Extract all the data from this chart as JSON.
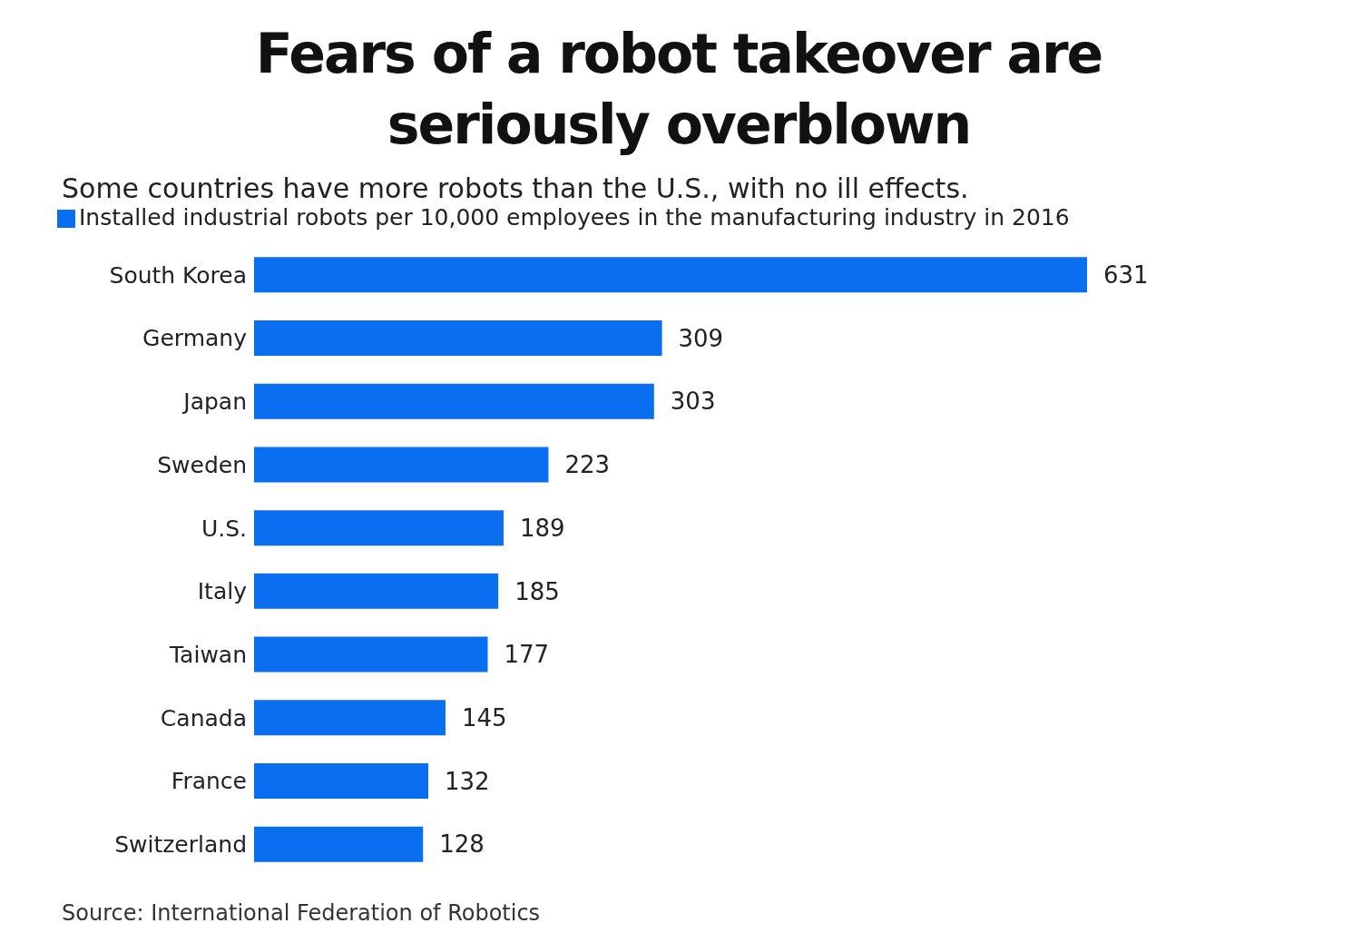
{
  "chart_data": {
    "type": "bar",
    "orientation": "horizontal",
    "title": "Fears of a robot takeover are seriously overblown",
    "subtitle": "Some countries have more robots than the U.S., with no ill effects.",
    "categories": [
      "South Korea",
      "Germany",
      "Japan",
      "Sweden",
      "U.S.",
      "Italy",
      "Taiwan",
      "Canada",
      "France",
      "Switzerland"
    ],
    "series": [
      {
        "name": "Installed industrial robots per 10,000 employees in the manufacturing industry in 2016",
        "color": "#0a6ef0",
        "values": [
          631,
          309,
          303,
          223,
          189,
          185,
          177,
          145,
          132,
          128
        ]
      }
    ],
    "data_labels": true,
    "legend": "top left",
    "grid": false,
    "tick_labels": "y",
    "annotations": [
      "Source: International Federation of Robotics"
    ]
  }
}
